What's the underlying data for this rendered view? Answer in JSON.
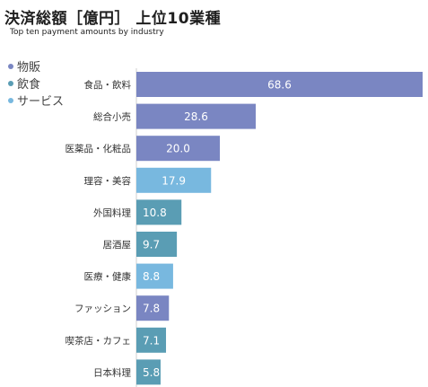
{
  "colors": {
    "物販": "#7a86c2",
    "飲食": "#5a9db4",
    "サービス": "#78b8df",
    "bar_label": "#ffffff",
    "category_text": "#333333"
  },
  "legend": [
    {
      "name": "物販",
      "color": "#7a86c2"
    },
    {
      "name": "飲食",
      "color": "#5a9db4"
    },
    {
      "name": "サービス",
      "color": "#78b8df"
    }
  ],
  "chart_data": {
    "type": "bar",
    "orientation": "horizontal",
    "title": "決済総額［億円］ 上位10業種",
    "subtitle": "Top ten payment amounts by industry",
    "xlabel": "",
    "ylabel": "",
    "xlim": [
      0,
      68.6
    ],
    "grid": false,
    "legend_position": "top-left",
    "categories": [
      "食品・飲料",
      "総合小売",
      "医薬品・化粧品",
      "理容・美容",
      "外国料理",
      "居酒屋",
      "医療・健康",
      "ファッション",
      "喫茶店・カフェ",
      "日本料理"
    ],
    "values": [
      68.6,
      28.6,
      20.0,
      17.9,
      10.8,
      9.7,
      8.8,
      7.8,
      7.1,
      5.8
    ],
    "value_labels": [
      "68.6",
      "28.6",
      "20.0",
      "17.9",
      "10.8",
      "9.7",
      "8.8",
      "7.8",
      "7.1",
      "5.8"
    ],
    "groups": [
      "物販",
      "物販",
      "物販",
      "サービス",
      "飲食",
      "飲食",
      "サービス",
      "物販",
      "飲食",
      "飲食"
    ]
  }
}
